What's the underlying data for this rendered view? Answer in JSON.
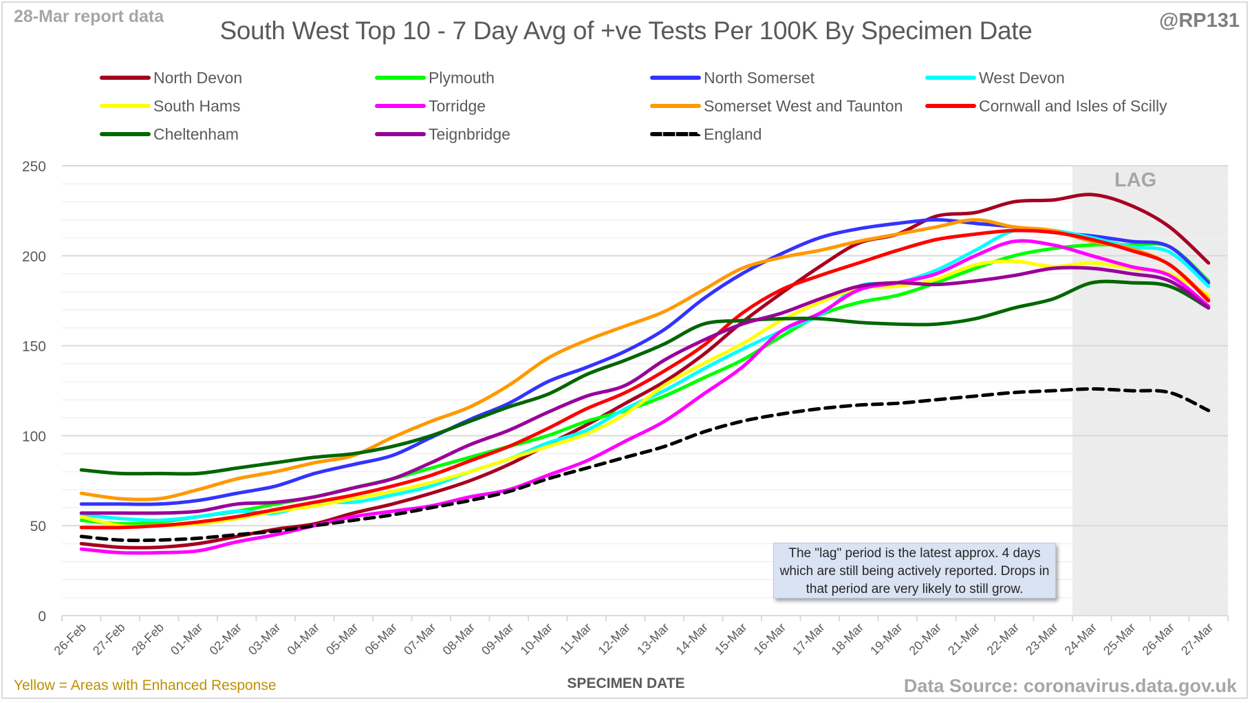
{
  "report_label": "28-Mar report data",
  "handle": "@RP131",
  "footnote_left": "Yellow = Areas with Enhanced Response",
  "footnote_right": "Data Source: coronavirus.data.gov.uk",
  "note": "The \"lag\" period is the latest approx. 4 days which are still being actively reported. Drops in that period are very likely to still grow.",
  "lag_label": "LAG",
  "chart_data": {
    "type": "line",
    "title": "South West Top 10 - 7 Day Avg of +ve Tests Per 100K By Specimen Date",
    "xlabel": "SPECIMEN DATE",
    "ylabel": "",
    "ylim": [
      0,
      250
    ],
    "yticks": [
      0,
      50,
      100,
      150,
      200,
      250
    ],
    "grid": true,
    "minor_grid_step": 10,
    "legend_position": "top",
    "lag_start": "24-Mar",
    "x": [
      "26-Feb",
      "27-Feb",
      "28-Feb",
      "01-Mar",
      "02-Mar",
      "03-Mar",
      "04-Mar",
      "05-Mar",
      "06-Mar",
      "07-Mar",
      "08-Mar",
      "09-Mar",
      "10-Mar",
      "11-Mar",
      "12-Mar",
      "13-Mar",
      "14-Mar",
      "15-Mar",
      "16-Mar",
      "17-Mar",
      "18-Mar",
      "19-Mar",
      "20-Mar",
      "21-Mar",
      "22-Mar",
      "23-Mar",
      "24-Mar",
      "25-Mar",
      "26-Mar",
      "27-Mar"
    ],
    "series": [
      {
        "name": "North Devon",
        "color": "#a50021",
        "dash": false,
        "values": [
          40,
          38,
          38,
          40,
          44,
          48,
          51,
          57,
          62,
          68,
          75,
          84,
          95,
          106,
          118,
          130,
          145,
          163,
          179,
          194,
          207,
          212,
          222,
          224,
          230,
          231,
          234,
          228,
          216,
          196
        ]
      },
      {
        "name": "Plymouth",
        "color": "#00ff00",
        "dash": false,
        "values": [
          53,
          51,
          52,
          55,
          58,
          62,
          66,
          71,
          76,
          82,
          88,
          94,
          100,
          108,
          114,
          122,
          132,
          142,
          155,
          167,
          174,
          178,
          185,
          193,
          200,
          204,
          206,
          206,
          205,
          186
        ]
      },
      {
        "name": "North Somerset",
        "color": "#3333ff",
        "dash": false,
        "values": [
          62,
          62,
          62,
          64,
          68,
          72,
          79,
          84,
          89,
          99,
          109,
          118,
          130,
          138,
          147,
          159,
          176,
          190,
          201,
          210,
          215,
          218,
          220,
          218,
          216,
          213,
          211,
          208,
          205,
          185
        ]
      },
      {
        "name": "West Devon",
        "color": "#00ffff",
        "dash": false,
        "values": [
          56,
          54,
          53,
          55,
          58,
          57,
          63,
          63,
          67,
          72,
          80,
          87,
          96,
          103,
          115,
          125,
          137,
          148,
          158,
          167,
          183,
          185,
          192,
          203,
          214,
          214,
          210,
          205,
          202,
          183
        ]
      },
      {
        "name": "South Hams",
        "color": "#ffff00",
        "dash": false,
        "values": [
          55,
          50,
          50,
          51,
          54,
          58,
          61,
          65,
          69,
          74,
          80,
          87,
          94,
          101,
          112,
          128,
          140,
          151,
          164,
          174,
          182,
          183,
          187,
          195,
          197,
          194,
          196,
          193,
          190,
          178
        ]
      },
      {
        "name": "Torridge",
        "color": "#ff00ff",
        "dash": false,
        "values": [
          37,
          35,
          35,
          36,
          41,
          45,
          50,
          55,
          58,
          61,
          66,
          70,
          78,
          86,
          97,
          108,
          123,
          138,
          158,
          168,
          181,
          185,
          190,
          200,
          208,
          206,
          200,
          194,
          189,
          172
        ]
      },
      {
        "name": "Somerset West and Taunton",
        "color": "#ff9900",
        "dash": false,
        "values": [
          68,
          65,
          65,
          70,
          76,
          80,
          85,
          89,
          99,
          108,
          116,
          128,
          143,
          153,
          161,
          169,
          181,
          193,
          199,
          203,
          208,
          212,
          216,
          220,
          216,
          214,
          208,
          204,
          195,
          176
        ]
      },
      {
        "name": "Cornwall and Isles of Scilly",
        "color": "#ff0000",
        "dash": false,
        "values": [
          49,
          49,
          50,
          52,
          55,
          59,
          63,
          67,
          72,
          78,
          86,
          94,
          104,
          115,
          124,
          136,
          150,
          168,
          181,
          189,
          196,
          203,
          209,
          212,
          214,
          213,
          209,
          203,
          195,
          175
        ]
      },
      {
        "name": "Cheltenham",
        "color": "#006600",
        "dash": false,
        "values": [
          81,
          79,
          79,
          79,
          82,
          85,
          88,
          90,
          94,
          100,
          108,
          116,
          123,
          134,
          142,
          151,
          162,
          164,
          165,
          165,
          163,
          162,
          162,
          165,
          171,
          176,
          185,
          185,
          183,
          171
        ]
      },
      {
        "name": "Teignbridge",
        "color": "#990099",
        "dash": false,
        "values": [
          57,
          57,
          57,
          58,
          62,
          63,
          66,
          71,
          76,
          85,
          95,
          103,
          113,
          122,
          128,
          142,
          153,
          162,
          168,
          176,
          183,
          185,
          184,
          186,
          189,
          193,
          193,
          190,
          186,
          171
        ]
      },
      {
        "name": "England",
        "color": "#000000",
        "dash": true,
        "values": [
          44,
          42,
          42,
          43,
          45,
          47,
          50,
          53,
          56,
          60,
          64,
          69,
          76,
          82,
          88,
          94,
          102,
          108,
          112,
          115,
          117,
          118,
          120,
          122,
          124,
          125,
          126,
          125,
          124,
          114
        ]
      }
    ]
  }
}
